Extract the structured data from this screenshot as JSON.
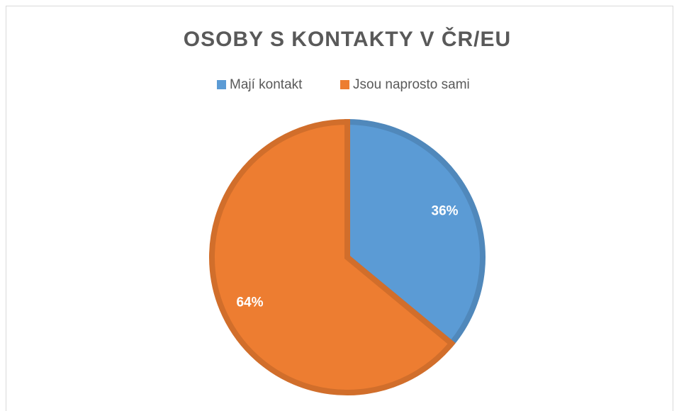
{
  "chart_data": {
    "type": "pie",
    "title": "OSOBY S KONTAKTY V ČR/EU",
    "categories": [
      "Mají kontakt",
      "Jsou naprosto sami"
    ],
    "values": [
      36,
      64
    ],
    "value_labels": [
      "36%",
      "64%"
    ],
    "colors": [
      "#5b9bd5",
      "#ed7d31"
    ],
    "legend": "top"
  }
}
